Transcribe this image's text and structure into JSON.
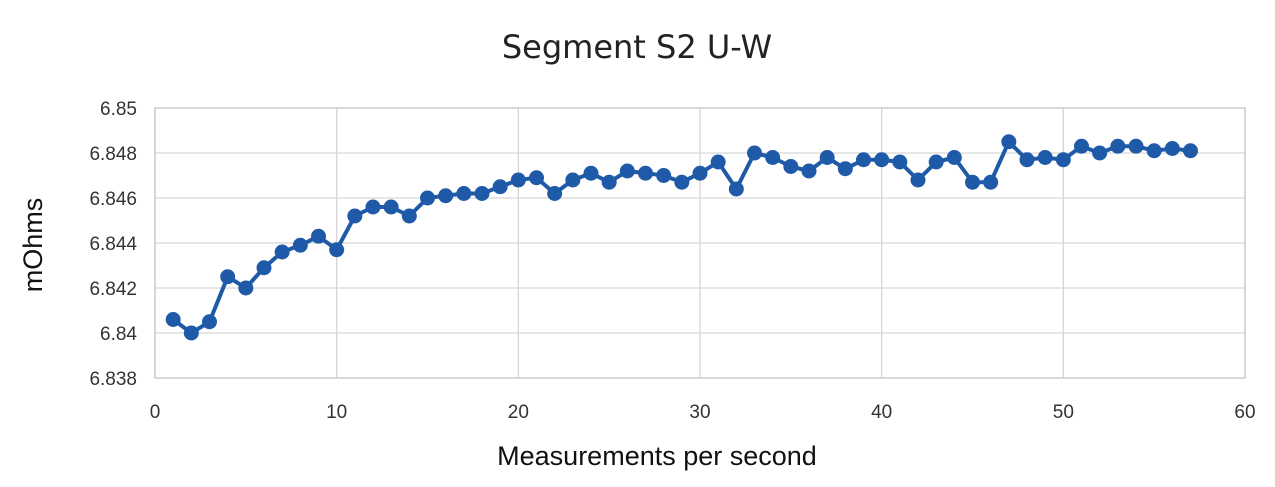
{
  "chart_data": {
    "type": "line",
    "title": "Segment S2 U-W",
    "xlabel": "Measurements per second",
    "ylabel": "mOhms",
    "xlim": [
      0,
      60
    ],
    "ylim": [
      6.838,
      6.85
    ],
    "xticks": [
      "0",
      "10",
      "20",
      "30",
      "40",
      "50",
      "60"
    ],
    "yticks": [
      "6.838",
      "6.84",
      "6.842",
      "6.844",
      "6.846",
      "6.848",
      "6.85"
    ],
    "grid": true,
    "legend": "none",
    "color": "#1f5aa8",
    "series": [
      {
        "x": [
          1,
          2,
          3,
          4,
          5,
          6,
          7,
          8,
          9,
          10,
          11,
          12,
          13,
          14,
          15,
          16,
          17,
          18,
          19,
          20,
          21,
          22,
          23,
          24,
          25,
          26,
          27,
          28,
          29,
          30,
          31,
          32,
          33,
          34,
          35,
          36,
          37,
          38,
          39,
          40,
          41,
          42,
          43,
          44,
          45,
          46,
          47,
          48,
          49,
          50,
          51,
          52,
          53,
          54,
          55,
          56,
          57
        ],
        "values": [
          6.8406,
          6.84,
          6.8405,
          6.8425,
          6.842,
          6.8429,
          6.8436,
          6.8439,
          6.8443,
          6.8437,
          6.8452,
          6.8456,
          6.8456,
          6.8452,
          6.846,
          6.8461,
          6.8462,
          6.8462,
          6.8465,
          6.8468,
          6.8469,
          6.8462,
          6.8468,
          6.8471,
          6.8467,
          6.8472,
          6.8471,
          6.847,
          6.8467,
          6.8471,
          6.8476,
          6.8464,
          6.848,
          6.8478,
          6.8474,
          6.8472,
          6.8478,
          6.8473,
          6.8477,
          6.8477,
          6.8476,
          6.8468,
          6.8476,
          6.8478,
          6.8467,
          6.8467,
          6.8485,
          6.8477,
          6.8478,
          6.8477,
          6.8483,
          6.848,
          6.8483,
          6.8483,
          6.8481,
          6.8482,
          6.8481
        ]
      }
    ]
  }
}
